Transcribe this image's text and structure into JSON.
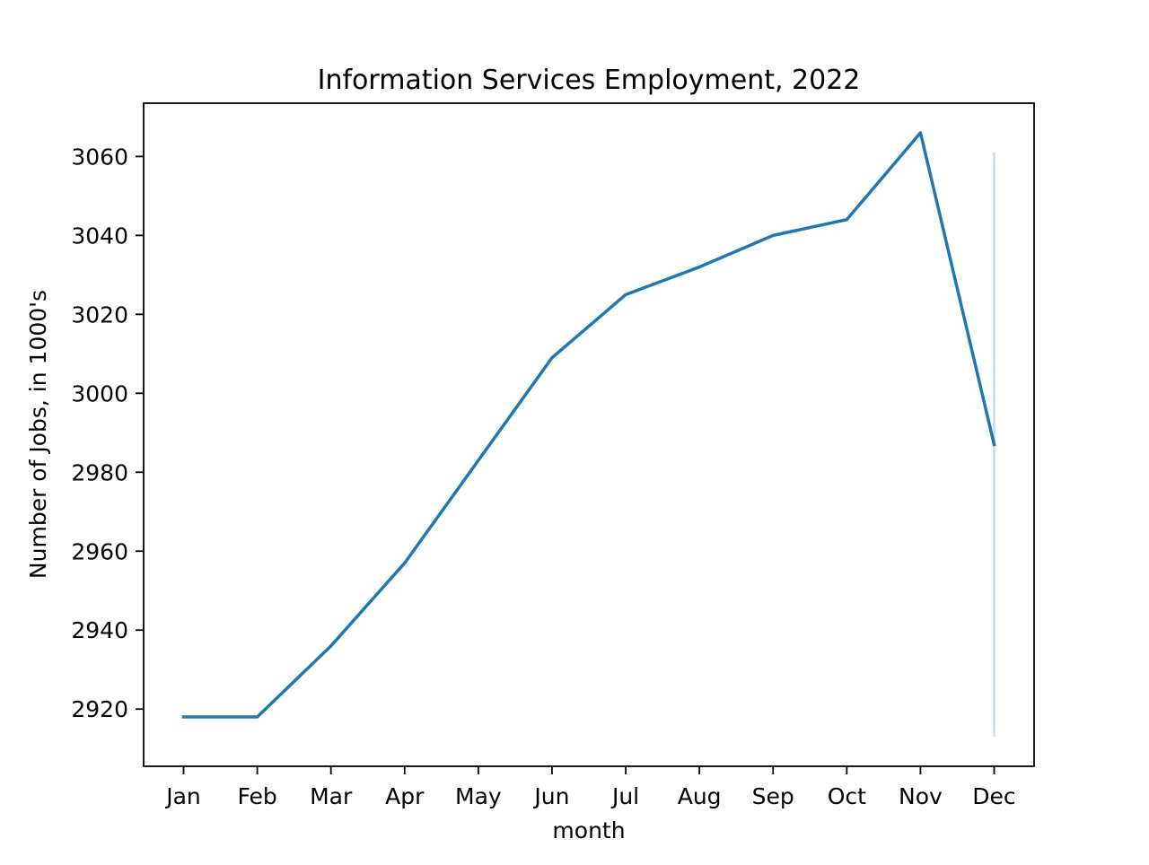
{
  "chart_data": {
    "type": "line",
    "title": "Information Services Employment, 2022",
    "xlabel": "month",
    "ylabel": "Number of Jobs, in 1000's",
    "categories": [
      "Jan",
      "Feb",
      "Mar",
      "Apr",
      "May",
      "Jun",
      "Jul",
      "Aug",
      "Sep",
      "Oct",
      "Nov",
      "Dec"
    ],
    "series": [
      {
        "values": [
          2918,
          2918,
          2936,
          2957,
          2983,
          3009,
          3025,
          3032,
          3040,
          3044,
          3066,
          2987
        ],
        "color": "#1f77b4"
      }
    ],
    "error_bar": {
      "category": "Dec",
      "low": 2913,
      "high": 3061,
      "color": "#c6dbef"
    },
    "ylim": [
      2905.5,
      3073.5
    ],
    "yticks": [
      2920,
      2940,
      2960,
      2980,
      3000,
      3020,
      3040,
      3060
    ],
    "grid": false,
    "legend": "none"
  }
}
